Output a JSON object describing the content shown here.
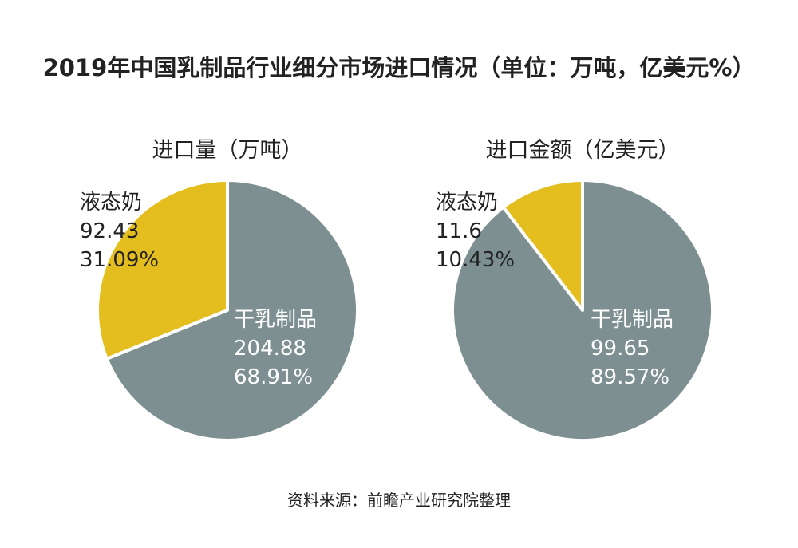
{
  "title": "2019年中国乳制品行业细分市场进口情况（单位：万吨，亿美元%）",
  "source": "资料来源：前瞻产业研究院整理",
  "colors": {
    "liquid_milk": "#E4BE1E",
    "dry_dairy": "#7D8F91"
  },
  "chart_data": [
    {
      "type": "pie",
      "title": "进口量（万吨）",
      "slices": [
        {
          "name": "液态奶",
          "value": "92.43",
          "percent": "31.09%",
          "share": 31.09,
          "color": "#E4BE1E"
        },
        {
          "name": "干乳制品",
          "value": "204.88",
          "percent": "68.91%",
          "share": 68.91,
          "color": "#7D8F91"
        }
      ]
    },
    {
      "type": "pie",
      "title": "进口金额（亿美元）",
      "slices": [
        {
          "name": "液态奶",
          "value": "11.6",
          "percent": "10.43%",
          "share": 10.43,
          "color": "#E4BE1E"
        },
        {
          "name": "干乳制品",
          "value": "99.65",
          "percent": "89.57%",
          "share": 89.57,
          "color": "#7D8F91"
        }
      ]
    }
  ]
}
